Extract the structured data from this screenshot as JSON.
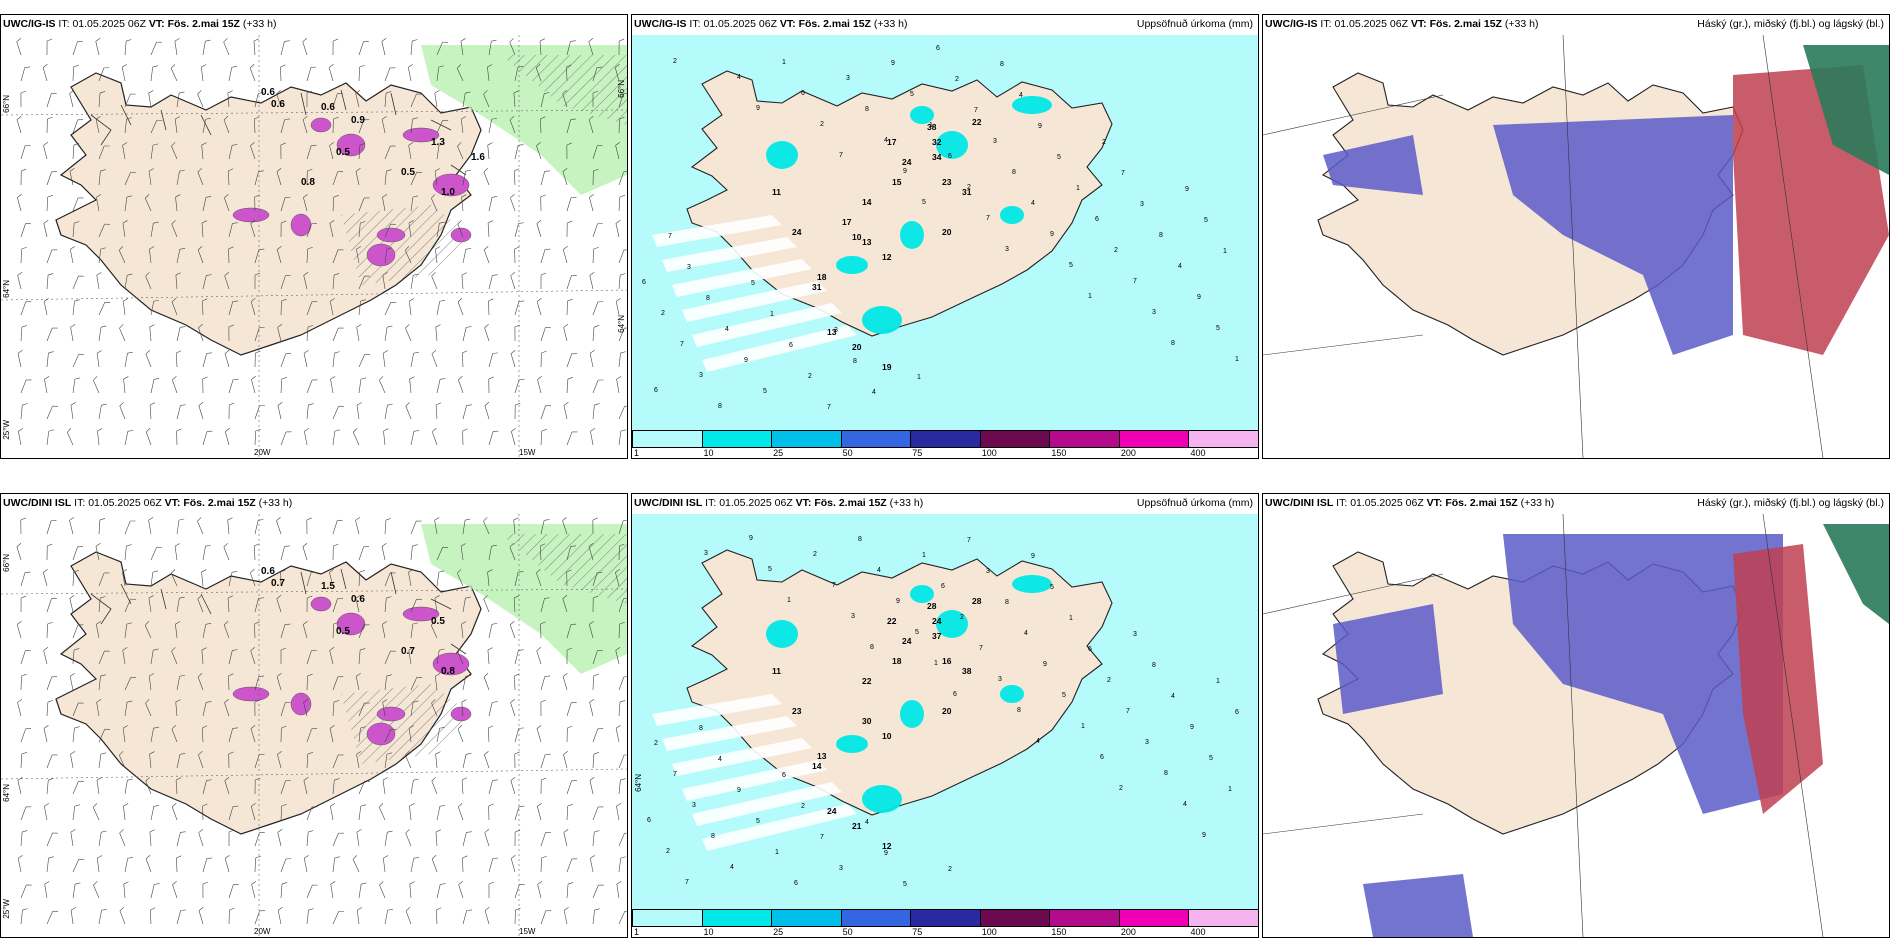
{
  "panels": [
    {
      "model": "UWC/IG-IS",
      "it_label": "IT:",
      "it_value": "01.05.2025 06Z",
      "vt_label": "VT:",
      "vt_value": "Fös. 2.mai 15Z",
      "lead": "(+33 h)",
      "right_title": ""
    },
    {
      "model": "UWC/IG-IS",
      "it_label": "IT:",
      "it_value": "01.05.2025 06Z",
      "vt_label": "VT:",
      "vt_value": "Fös. 2.mai 15Z",
      "lead": "(+33 h)",
      "right_title": "Uppsöfnuð úrkoma (mm)"
    },
    {
      "model": "UWC/IG-IS",
      "it_label": "IT:",
      "it_value": "01.05.2025 06Z",
      "vt_label": "VT:",
      "vt_value": "Fös. 2.mai 15Z",
      "lead": "(+33 h)",
      "right_title": "Háský (gr.), miðský (fj.bl.) og lágský (bl.)"
    },
    {
      "model": "UWC/DINI ISL",
      "it_label": "IT:",
      "it_value": "01.05.2025 06Z",
      "vt_label": "VT:",
      "vt_value": "Fös. 2.mai 15Z",
      "lead": "(+33 h)",
      "right_title": ""
    },
    {
      "model": "UWC/DINI ISL",
      "it_label": "IT:",
      "it_value": "01.05.2025 06Z",
      "vt_label": "VT:",
      "vt_value": "Fös. 2.mai 15Z",
      "lead": "(+33 h)",
      "right_title": "Uppsöfnuð úrkoma (mm)"
    },
    {
      "model": "UWC/DINI ISL",
      "it_label": "IT:",
      "it_value": "01.05.2025 06Z",
      "vt_label": "VT:",
      "vt_value": "Fös. 2.mai 15Z",
      "lead": "(+33 h)",
      "right_title": "Háský (gr.), miðský (fj.bl.) og lágský (bl.)"
    }
  ],
  "axis_labels": {
    "lat_66": "66°N",
    "lat_64": "64°N",
    "lon_25": "25°W",
    "lon_20": "20W",
    "lon_15": "15W"
  },
  "colorbar": {
    "ticks": [
      "1",
      "10",
      "25",
      "50",
      "75",
      "100",
      "150",
      "200",
      "400"
    ],
    "colors": [
      "#b6fbfb",
      "#00e8e8",
      "#00bfe8",
      "#3366e0",
      "#2a2aa0",
      "#6b0a4e",
      "#b40a8c",
      "#f000b4",
      "#f5b4f0"
    ]
  },
  "map_colors": {
    "land": "#f5e6d6",
    "sea": "#ffffff",
    "precip_light": "#b6fbfb",
    "precip_mod": "#00e8e8",
    "snow": "#cc55cc",
    "green": "#b8f0b0",
    "high_cloud": "#5a5ac8",
    "mid_cloud": "#c04050",
    "low_cloud": "#2a7a5a"
  },
  "snow_labels_top": [
    "0.6",
    "0.6",
    "0.5",
    "0.6",
    "1.3",
    "0.9",
    "0.5",
    "1.0",
    "0.8",
    "1.6"
  ],
  "snow_labels_bottom": [
    "0.6",
    "0.7",
    "0.5",
    "1.5",
    "0.5",
    "0.6",
    "0.7",
    "0.8"
  ],
  "precip_labels_top": [
    "38",
    "32",
    "34",
    "22",
    "23",
    "31",
    "24",
    "20",
    "17",
    "15",
    "14",
    "13",
    "24",
    "18",
    "31",
    "13",
    "20",
    "19",
    "11",
    "12",
    "17",
    "10"
  ],
  "precip_labels_bottom": [
    "28",
    "24",
    "37",
    "28",
    "16",
    "38",
    "24",
    "20",
    "22",
    "18",
    "22",
    "30",
    "23",
    "13",
    "14",
    "24",
    "21",
    "12",
    "11",
    "10"
  ]
}
